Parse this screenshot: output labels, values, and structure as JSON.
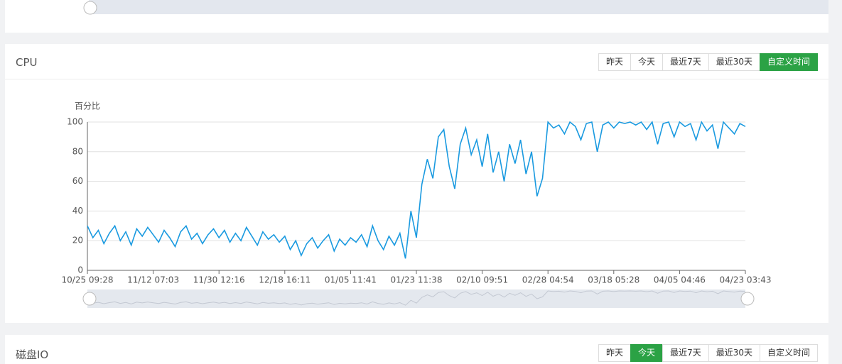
{
  "panels": [
    {
      "title": "CPU",
      "buttons": [
        "昨天",
        "今天",
        "最近7天",
        "最近30天",
        "自定义时间"
      ],
      "active": 4
    },
    {
      "title": "磁盘IO",
      "buttons": [
        "昨天",
        "今天",
        "最近7天",
        "最近30天",
        "自定义时间"
      ],
      "active": 1
    }
  ],
  "chart_data": {
    "type": "line",
    "y_label": "百分比",
    "color": "#1a9ae0",
    "grid": true,
    "ylim": [
      0,
      100
    ],
    "yticks": [
      0,
      20,
      40,
      60,
      80,
      100
    ],
    "categories": [
      "10/25 09:28",
      null,
      null,
      null,
      null,
      null,
      null,
      null,
      null,
      null,
      null,
      null,
      "11/12 07:03",
      null,
      null,
      null,
      null,
      null,
      null,
      null,
      null,
      null,
      null,
      null,
      "11/30 12:16",
      null,
      null,
      null,
      null,
      null,
      null,
      null,
      null,
      null,
      null,
      null,
      "12/18 16:11",
      null,
      null,
      null,
      null,
      null,
      null,
      null,
      null,
      null,
      null,
      null,
      "01/05 11:41",
      null,
      null,
      null,
      null,
      null,
      null,
      null,
      null,
      null,
      null,
      null,
      "01/23 11:38",
      null,
      null,
      null,
      null,
      null,
      null,
      null,
      null,
      null,
      null,
      null,
      "02/10 09:51",
      null,
      null,
      null,
      null,
      null,
      null,
      null,
      null,
      null,
      null,
      null,
      "02/28 04:54",
      null,
      null,
      null,
      null,
      null,
      null,
      null,
      null,
      null,
      null,
      null,
      "03/18 05:28",
      null,
      null,
      null,
      null,
      null,
      null,
      null,
      null,
      null,
      null,
      null,
      "04/05 04:46",
      null,
      null,
      null,
      null,
      null,
      null,
      null,
      null,
      null,
      null,
      null,
      "04/23 03:43"
    ],
    "values": [
      30,
      22,
      27,
      18,
      25,
      30,
      20,
      26,
      17,
      28,
      23,
      29,
      24,
      19,
      27,
      22,
      16,
      26,
      30,
      21,
      25,
      18,
      24,
      28,
      22,
      27,
      19,
      25,
      20,
      29,
      23,
      17,
      26,
      21,
      24,
      19,
      23,
      14,
      20,
      10,
      18,
      22,
      15,
      20,
      24,
      13,
      21,
      17,
      22,
      19,
      24,
      16,
      30,
      20,
      14,
      23,
      17,
      25,
      8,
      40,
      22,
      58,
      75,
      62,
      90,
      95,
      70,
      55,
      85,
      96,
      78,
      88,
      70,
      92,
      66,
      80,
      60,
      85,
      72,
      88,
      65,
      80,
      50,
      62,
      100,
      96,
      98,
      92,
      100,
      97,
      88,
      99,
      100,
      80,
      98,
      100,
      96,
      100,
      99,
      100,
      98,
      100,
      95,
      100,
      85,
      99,
      100,
      90,
      100,
      97,
      99,
      88,
      100,
      94,
      98,
      82,
      100,
      96,
      92,
      99,
      97
    ]
  }
}
